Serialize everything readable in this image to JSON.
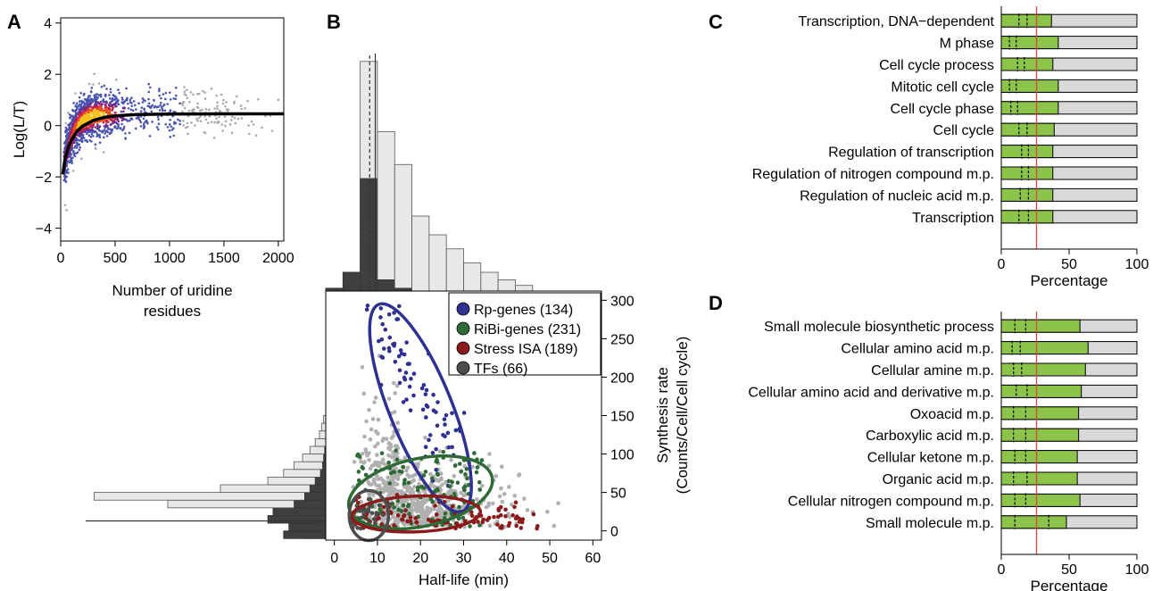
{
  "chart_data": [
    {
      "panel_label": "A",
      "type": "scatter",
      "xlabel": "Number of uridine residues",
      "ylabel": "Log(L/T)",
      "xlim": [
        0,
        2050
      ],
      "ylim": [
        -4.5,
        4.2
      ],
      "xticks": [
        0,
        500,
        1000,
        1500,
        2000
      ],
      "yticks": [
        -4,
        -2,
        0,
        2,
        4
      ],
      "fit_curve": [
        [
          20,
          -1.9
        ],
        [
          40,
          -1.3
        ],
        [
          70,
          -0.85
        ],
        [
          100,
          -0.55
        ],
        [
          150,
          -0.22
        ],
        [
          200,
          -0.02
        ],
        [
          300,
          0.2
        ],
        [
          400,
          0.32
        ],
        [
          500,
          0.38
        ],
        [
          700,
          0.43
        ],
        [
          1000,
          0.45
        ],
        [
          1500,
          0.46
        ],
        [
          2050,
          0.46
        ]
      ],
      "density": "points colored by density: blue (low) to red/yellow (high), grey outliers"
    },
    {
      "panel_label": "B",
      "type": "scatter",
      "xlabel": "Half-life (min)",
      "ylabel": "Synthesis rate (Counts/Cell/Cell cycle)",
      "xlim": [
        -2,
        62
      ],
      "ylim": [
        -12,
        312
      ],
      "xticks": [
        0,
        10,
        20,
        30,
        40,
        50,
        60
      ],
      "yticks": [
        0,
        50,
        100,
        150,
        200,
        250,
        300
      ],
      "legend": [
        {
          "label": "Rp-genes (134)",
          "color": "#2e3192"
        },
        {
          "label": "RiBi-genes (231)",
          "color": "#2d6a35"
        },
        {
          "label": "Stress ISA (189)",
          "color": "#8b1a1a"
        },
        {
          "label": "TFs (66)",
          "color": "#4d4d4d"
        }
      ],
      "ellipses": [
        {
          "group": "Rp-genes",
          "center": [
            20,
            160
          ],
          "color": "#2e3192"
        },
        {
          "group": "RiBi-genes",
          "center": [
            20,
            50
          ],
          "color": "#2d6a35"
        },
        {
          "group": "Stress ISA",
          "center": [
            19,
            22
          ],
          "color": "#8b1a1a"
        },
        {
          "group": "TFs",
          "center": [
            8,
            20
          ],
          "color": "#4d4d4d"
        }
      ],
      "halflife_histogram": {
        "bin_edges": [
          -2,
          2,
          6,
          10,
          14,
          18,
          22,
          26,
          30,
          34,
          38,
          42,
          46
        ],
        "all_genes": [
          0.03,
          0.2,
          2.45,
          1.7,
          1.35,
          0.8,
          0.6,
          0.45,
          0.3,
          0.2,
          0.12,
          0.06
        ],
        "subset": [
          0.03,
          0.2,
          1.2,
          0.12,
          0.03,
          0,
          0,
          0,
          0,
          0,
          0,
          0
        ],
        "median_solid": 9.5,
        "median_dashed": 8.2
      },
      "synthesis_histogram": {
        "bin_edges": [
          -10,
          0,
          10,
          20,
          30,
          40,
          50,
          60,
          70,
          80,
          90,
          100,
          110,
          120,
          130,
          140,
          150
        ],
        "all_genes": [
          0.2,
          0.05,
          0.1,
          0.5,
          1.5,
          2.2,
          1.0,
          0.55,
          0.4,
          0.3,
          0.22,
          0.15,
          0.1,
          0.06,
          0.04,
          0.02
        ],
        "subset": [
          0.4,
          0.35,
          0.55,
          0.5,
          0.3,
          0.2,
          0.15,
          0.1,
          0.05,
          0.03,
          0.02,
          0.01,
          0,
          0,
          0,
          0
        ]
      }
    },
    {
      "panel_label": "C",
      "type": "bar",
      "orientation": "horizontal",
      "xlabel": "Percentage",
      "xlim": [
        0,
        100
      ],
      "xticks": [
        0,
        50,
        100
      ],
      "reference_line": 26,
      "categories": [
        "Transcription, DNA−dependent",
        "M phase",
        "Cell cycle process",
        "Mitotic cell cycle",
        "Cell cycle phase",
        "Cell cycle",
        "Regulation of transcription",
        "Regulation of nitrogen compound m.p.",
        "Regulation of nucleic acid m.p.",
        "Transcription"
      ],
      "values": [
        37,
        42,
        38,
        42,
        42,
        39,
        38,
        38,
        38,
        38
      ],
      "dashed_a": [
        13,
        6,
        12,
        6,
        7,
        13,
        15,
        15,
        14,
        13
      ],
      "dashed_b": [
        19,
        11,
        17,
        11,
        12,
        19,
        20,
        20,
        20,
        20
      ]
    },
    {
      "panel_label": "D",
      "type": "bar",
      "orientation": "horizontal",
      "xlabel": "Percentage",
      "xlim": [
        0,
        100
      ],
      "xticks": [
        0,
        50,
        100
      ],
      "reference_line": 26,
      "categories": [
        "Small molecule biosynthetic process",
        "Cellular amino acid m.p.",
        "Cellular amine m.p.",
        "Cellular amino acid and derivative m.p.",
        "Oxoacid m.p.",
        "Carboxylic acid m.p.",
        "Cellular ketone m.p.",
        "Organic acid m.p.",
        "Cellular nitrogen compound m.p.",
        "Small molecule m.p."
      ],
      "values": [
        58,
        64,
        62,
        59,
        57,
        57,
        56,
        56,
        58,
        48
      ],
      "dashed_a": [
        10,
        8,
        9,
        11,
        9,
        9,
        10,
        9,
        10,
        10
      ],
      "dashed_b": [
        18,
        14,
        15,
        19,
        18,
        18,
        18,
        19,
        18,
        35
      ]
    }
  ]
}
